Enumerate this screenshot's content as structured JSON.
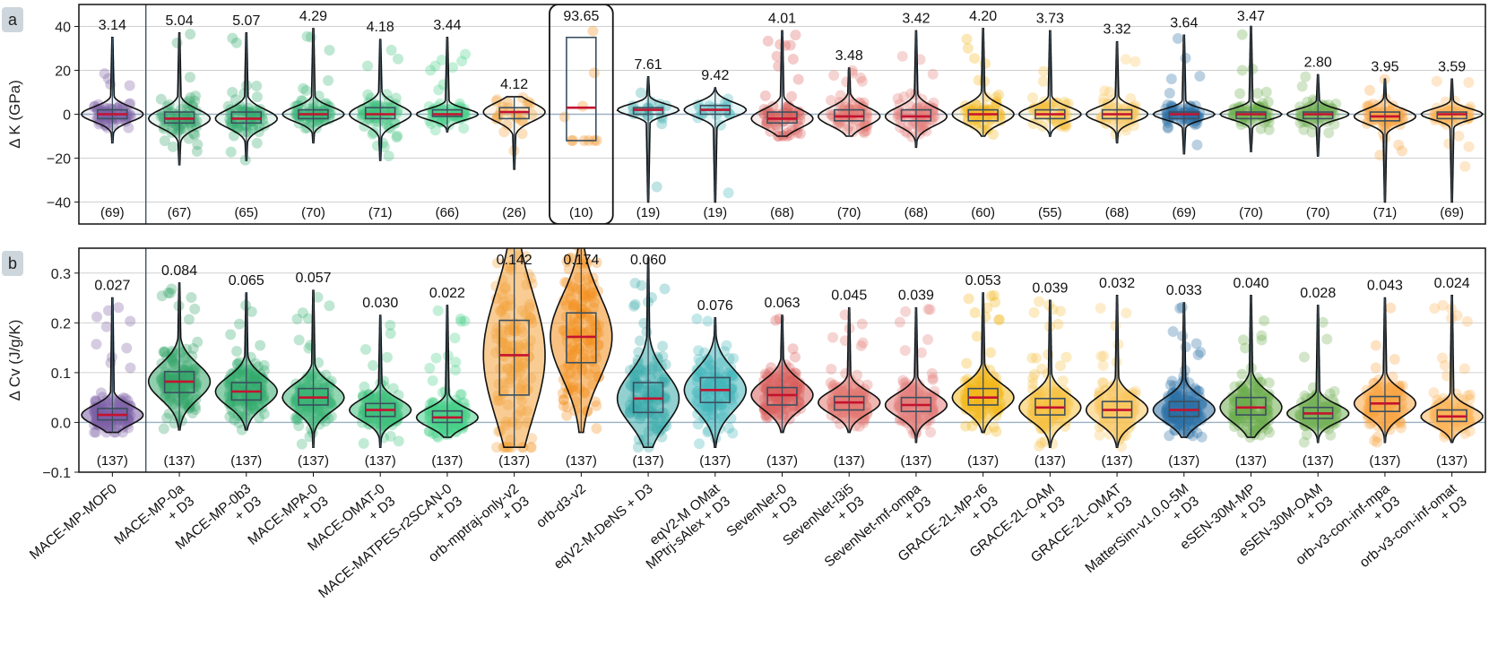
{
  "models": [
    "MACE-MP-MOF0",
    "MACE-MP-0a\n+ D3",
    "MACE-MP-0b3\n+ D3",
    "MACE-MPA-0\n+ D3",
    "MACE-OMAT-0\n+ D3",
    "MACE-MATPES-r2SCAN-0\n+ D3",
    "orb-mptraj-only-v2\n+ D3",
    "orb-d3-v2",
    "eqV2-M-DeNS + D3",
    "eqV2-M OMat\nMPtrj-sAlex + D3",
    "SevenNet-0\n+ D3",
    "SevenNet-l3i5\n+ D3",
    "SevenNet-mf-ompa\n+ D3",
    "GRACE-2L-MP-r6\n+ D3",
    "GRACE-2L-OAM\n+ D3",
    "GRACE-2L-OMAT\n+ D3",
    "MatterSim-v1.0.0-5M\n+ D3",
    "eSEN-30M-MP\n+ D3",
    "eSEN-30M-OAM\n+ D3",
    "orb-v3-con-inf-mpa\n+ D3",
    "orb-v3-con-inf-omat\n+ D3"
  ],
  "colors": [
    "#7b5fa6",
    "#34a569",
    "#33ab6c",
    "#3bb575",
    "#3fc07b",
    "#47cf88",
    "#f2a23a",
    "#f28e1c",
    "#3aabac",
    "#44b7bc",
    "#d9605e",
    "#e27a72",
    "#e3807c",
    "#f3b81c",
    "#f7c244",
    "#f9c760",
    "#2a6fa6",
    "#6dad4e",
    "#76b25a",
    "#f9a643",
    "#fbb45a"
  ],
  "chart_data": [
    {
      "type": "violin",
      "panel_label": "a",
      "title": "",
      "ylabel": "Δ K (GPa)",
      "ylim": [
        -50,
        50
      ],
      "yticks": [
        -40,
        -20,
        0,
        20,
        40
      ],
      "grid": true,
      "highlighted_index": 7,
      "mae": [
        "3.14",
        "5.04",
        "5.07",
        "4.29",
        "4.18",
        "3.44",
        "4.12",
        "93.65",
        "7.61",
        "9.42",
        "4.01",
        "3.48",
        "3.42",
        "4.20",
        "3.73",
        "3.32",
        "3.64",
        "3.47",
        "2.80",
        "3.95",
        "3.59"
      ],
      "counts": [
        "(69)",
        "(67)",
        "(65)",
        "(70)",
        "(71)",
        "(66)",
        "(26)",
        "(10)",
        "(19)",
        "(19)",
        "(68)",
        "(70)",
        "(68)",
        "(60)",
        "(55)",
        "(68)",
        "(69)",
        "(70)",
        "(70)",
        "(71)",
        "(69)"
      ],
      "stats": [
        {
          "min": -13,
          "q1": -2,
          "median": 0,
          "q3": 2,
          "max": 35
        },
        {
          "min": -23,
          "q1": -4,
          "median": -2,
          "q3": 1,
          "max": 37
        },
        {
          "min": -21,
          "q1": -4,
          "median": -2,
          "q3": 1,
          "max": 37
        },
        {
          "min": -13,
          "q1": -2,
          "median": 0,
          "q3": 2,
          "max": 39
        },
        {
          "min": -21,
          "q1": -2,
          "median": 0,
          "q3": 3,
          "max": 34
        },
        {
          "min": -8,
          "q1": -1,
          "median": 0,
          "q3": 2,
          "max": 35
        },
        {
          "min": -25,
          "q1": -2,
          "median": 1,
          "q3": 3,
          "max": 8
        },
        {
          "min": -12,
          "q1": -12,
          "median": 3,
          "q3": 35,
          "max": 45
        },
        {
          "min": -40,
          "q1": 0,
          "median": 2,
          "q3": 3,
          "max": 17
        },
        {
          "min": -40,
          "q1": 0,
          "median": 2,
          "q3": 4,
          "max": 12
        },
        {
          "min": -10,
          "q1": -4,
          "median": -2,
          "q3": 1,
          "max": 38
        },
        {
          "min": -10,
          "q1": -3,
          "median": -1,
          "q3": 2,
          "max": 21
        },
        {
          "min": -15,
          "q1": -3,
          "median": -1,
          "q3": 2,
          "max": 38
        },
        {
          "min": -10,
          "q1": -3,
          "median": 0,
          "q3": 2,
          "max": 39
        },
        {
          "min": -10,
          "q1": -2,
          "median": 0,
          "q3": 2,
          "max": 38
        },
        {
          "min": -13,
          "q1": -2,
          "median": 0,
          "q3": 2,
          "max": 33
        },
        {
          "min": -18,
          "q1": -2,
          "median": 0,
          "q3": 1,
          "max": 36
        },
        {
          "min": -17,
          "q1": -2,
          "median": 0,
          "q3": 1,
          "max": 40
        },
        {
          "min": -19,
          "q1": -2,
          "median": 0,
          "q3": 1,
          "max": 18
        },
        {
          "min": -40,
          "q1": -3,
          "median": -1,
          "q3": 1,
          "max": 16
        },
        {
          "min": -40,
          "q1": -2,
          "median": 0,
          "q3": 1,
          "max": 16
        }
      ]
    },
    {
      "type": "violin",
      "panel_label": "b",
      "title": "",
      "ylabel": "Δ Cv (J/g/K)",
      "ylim": [
        -0.1,
        0.35
      ],
      "yticks": [
        -0.1,
        0.0,
        0.1,
        0.2,
        0.3
      ],
      "grid": true,
      "mae": [
        "0.027",
        "0.084",
        "0.065",
        "0.057",
        "0.030",
        "0.022",
        "0.142",
        "0.174",
        "0.060",
        "0.076",
        "0.063",
        "0.045",
        "0.039",
        "0.053",
        "0.039",
        "0.032",
        "0.033",
        "0.040",
        "0.028",
        "0.043",
        "0.024"
      ],
      "counts": [
        "(137)",
        "(137)",
        "(137)",
        "(137)",
        "(137)",
        "(137)",
        "(137)",
        "(137)",
        "(137)",
        "(137)",
        "(137)",
        "(137)",
        "(137)",
        "(137)",
        "(137)",
        "(137)",
        "(137)",
        "(137)",
        "(137)",
        "(137)",
        "(137)"
      ],
      "stats": [
        {
          "min": -0.02,
          "q1": 0.005,
          "median": 0.015,
          "q3": 0.028,
          "max": 0.25
        },
        {
          "min": -0.015,
          "q1": 0.06,
          "median": 0.082,
          "q3": 0.102,
          "max": 0.28
        },
        {
          "min": -0.015,
          "q1": 0.045,
          "median": 0.062,
          "q3": 0.08,
          "max": 0.26
        },
        {
          "min": -0.05,
          "q1": 0.035,
          "median": 0.05,
          "q3": 0.068,
          "max": 0.265
        },
        {
          "min": -0.05,
          "q1": 0.012,
          "median": 0.025,
          "q3": 0.038,
          "max": 0.215
        },
        {
          "min": -0.03,
          "q1": 0.0,
          "median": 0.01,
          "q3": 0.023,
          "max": 0.235
        },
        {
          "min": -0.05,
          "q1": 0.055,
          "median": 0.135,
          "q3": 0.205,
          "max": 0.36
        },
        {
          "min": -0.02,
          "q1": 0.12,
          "median": 0.172,
          "q3": 0.22,
          "max": 0.36
        },
        {
          "min": -0.05,
          "q1": 0.02,
          "median": 0.048,
          "q3": 0.08,
          "max": 0.33
        },
        {
          "min": -0.05,
          "q1": 0.04,
          "median": 0.065,
          "q3": 0.09,
          "max": 0.21
        },
        {
          "min": -0.02,
          "q1": 0.035,
          "median": 0.055,
          "q3": 0.07,
          "max": 0.215
        },
        {
          "min": -0.02,
          "q1": 0.025,
          "median": 0.04,
          "q3": 0.052,
          "max": 0.23
        },
        {
          "min": -0.04,
          "q1": 0.022,
          "median": 0.035,
          "q3": 0.05,
          "max": 0.23
        },
        {
          "min": -0.02,
          "q1": 0.035,
          "median": 0.05,
          "q3": 0.068,
          "max": 0.26
        },
        {
          "min": -0.05,
          "q1": 0.015,
          "median": 0.03,
          "q3": 0.048,
          "max": 0.245
        },
        {
          "min": -0.05,
          "q1": 0.01,
          "median": 0.025,
          "q3": 0.042,
          "max": 0.255
        },
        {
          "min": -0.03,
          "q1": 0.012,
          "median": 0.025,
          "q3": 0.042,
          "max": 0.24
        },
        {
          "min": -0.03,
          "q1": 0.015,
          "median": 0.03,
          "q3": 0.05,
          "max": 0.255
        },
        {
          "min": -0.04,
          "q1": 0.008,
          "median": 0.018,
          "q3": 0.03,
          "max": 0.235
        },
        {
          "min": -0.04,
          "q1": 0.022,
          "median": 0.038,
          "q3": 0.052,
          "max": 0.25
        },
        {
          "min": -0.04,
          "q1": 0.002,
          "median": 0.012,
          "q3": 0.025,
          "max": 0.255
        }
      ]
    }
  ]
}
